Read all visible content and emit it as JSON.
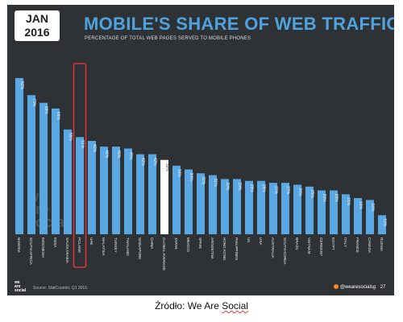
{
  "badge": {
    "month": "JAN",
    "year": "2016"
  },
  "title": "MOBILE'S SHARE OF WEB TRAFFIC",
  "subtitle": "PERCENTAGE OF TOTAL WEB PAGES SERVED TO MOBILE PHONES",
  "watermark": [
    "we",
    "are",
    "social"
  ],
  "footer": {
    "logo": [
      "we",
      "are",
      "social"
    ],
    "source": "Source: StatCounter, Q1 2016.",
    "handle": "@wearesocialsg",
    "page": "27"
  },
  "caption": {
    "prefix": "Źródło: We Are ",
    "source": "Social"
  },
  "colors": {
    "bar": "#5aa8e3",
    "highlight_bar": "#ffffff",
    "highlight_outline": "#d8363b",
    "background": "#2f3234",
    "title": "#4ea3de"
  },
  "chart_data": {
    "type": "bar",
    "title": "MOBILE'S SHARE OF WEB TRAFFIC",
    "subtitle": "PERCENTAGE OF TOTAL WEB PAGES SERVED TO MOBILE PHONES",
    "categories": [
      "NIGERIA",
      "SOUTH AFRICA",
      "INDONESIA",
      "INDIA",
      "SAUDI ARABIA",
      "POLAND",
      "UAE",
      "MALAYSIA",
      "TURKEY",
      "THAILAND",
      "SINGAPORE",
      "CHINA",
      "GLOBAL AVERAGE",
      "JAPAN",
      "MEXICO",
      "SPAIN",
      "ARGENTINA",
      "HONG KONG",
      "PHILIPPINES",
      "UK",
      "USA",
      "AUSTRALIA",
      "SOUTH KOREA",
      "BRAZIL",
      "VIETNAM",
      "GERMANY",
      "EGYPT",
      "ITALY",
      "FRANCE",
      "CANADA",
      "RUSSIA"
    ],
    "values": [
      82,
      73,
      69,
      66,
      55,
      51,
      49,
      46,
      46,
      45,
      42,
      42,
      39,
      36,
      34,
      32,
      31,
      29,
      29,
      28,
      28,
      27,
      27,
      26,
      25,
      23,
      23,
      21,
      19,
      18,
      10
    ],
    "value_labels": [
      "82%",
      "73%",
      "69%",
      "66%",
      "55%",
      "51%",
      "49%",
      "46%",
      "46%",
      "45%",
      "42%",
      "42%",
      "39%",
      "36%",
      "34%",
      "32%",
      "31%",
      "29%",
      "29%",
      "28%",
      "28%",
      "27%",
      "27%",
      "26%",
      "25%",
      "23%",
      "23%",
      "21%",
      "19%",
      "18%",
      "10%"
    ],
    "highlight_bar": "GLOBAL AVERAGE",
    "outlined_bar": "POLAND",
    "ylim": [
      0,
      90
    ],
    "grid": false,
    "legend": "none"
  }
}
